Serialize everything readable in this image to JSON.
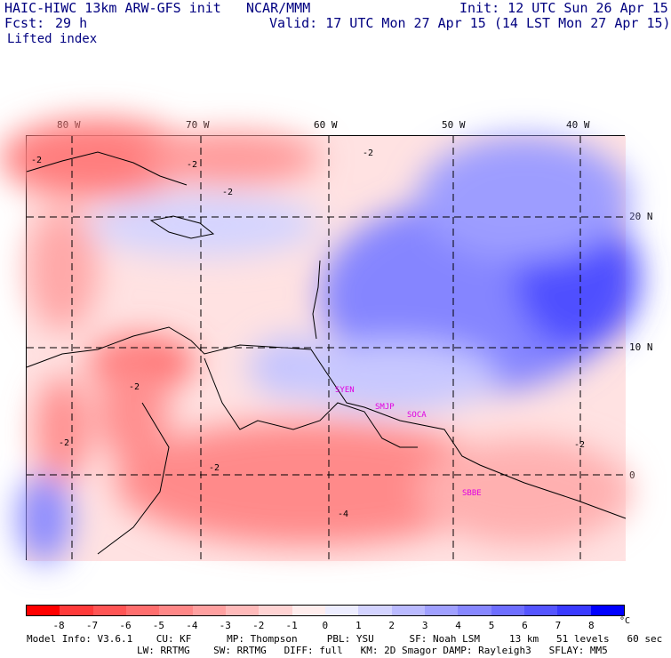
{
  "header": {
    "model": "HAIC-HIWC 13km ARW-GFS init",
    "org": "NCAR/MMM",
    "init": "Init: 12 UTC Sun 26 Apr 15",
    "fcst_label": "Fcst:",
    "fcst_value": "29 h",
    "valid": "Valid: 17 UTC Mon 27 Apr 15 (14 LST Mon 27 Apr 15)",
    "field": "Lifted index"
  },
  "map": {
    "lon_labels": [
      "80 W",
      "70 W",
      "60 W",
      "50 W",
      "40 W"
    ],
    "lat_labels": [
      "20 N",
      "10 N",
      "0"
    ],
    "stations": [
      "SYEN",
      "SMJP",
      "SOCA",
      "SBBE"
    ],
    "contour_labels": [
      "-2",
      "-2",
      "-2",
      "-2",
      "-2",
      "-2",
      "-2",
      "-2",
      "-4"
    ]
  },
  "colorbar": {
    "labels": [
      "-8",
      "-7",
      "-6",
      "-5",
      "-4",
      "-3",
      "-2",
      "-1",
      "0",
      "1",
      "2",
      "3",
      "4",
      "5",
      "6",
      "7",
      "8"
    ],
    "unit": "°C",
    "colors": [
      "#ff0000",
      "#ff3a3a",
      "#ff5555",
      "#ff6e6e",
      "#ff8787",
      "#ffa0a0",
      "#ffbaba",
      "#ffd3d3",
      "#ffeded",
      "#ededff",
      "#d3d3ff",
      "#babaff",
      "#a0a0ff",
      "#8787ff",
      "#6e6eff",
      "#5555ff",
      "#3a3aff",
      "#0000ff"
    ]
  },
  "info": {
    "line1": "Model Info: V3.6.1    CU: KF      MP: Thompson     PBL: YSU      SF: Noah LSM     13 km   51 levels   60 sec",
    "line2": "LW: RRTMG    SW: RRTMG   DIFF: full   KM: 2D Smagor DAMP: Rayleigh3   SFLAY: MM5"
  }
}
